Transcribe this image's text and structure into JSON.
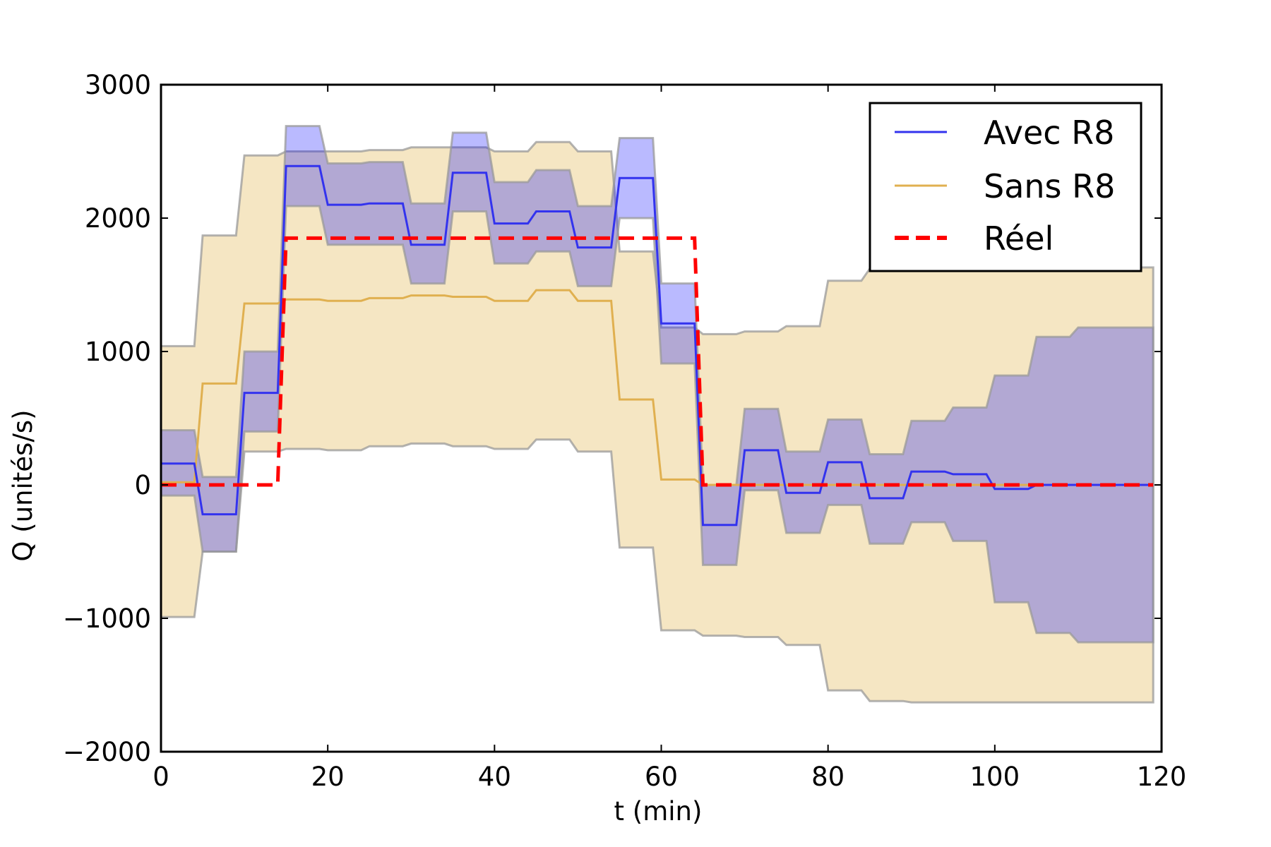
{
  "chart_data": {
    "type": "line",
    "xlabel": "t (min)",
    "ylabel": "Q (unités/s)",
    "xlim": [
      0,
      120
    ],
    "ylim": [
      -2000,
      3000
    ],
    "xticks": [
      0,
      20,
      40,
      60,
      80,
      100,
      120
    ],
    "xtick_labels": [
      "0",
      "20",
      "40",
      "60",
      "80",
      "100",
      "120"
    ],
    "yticks": [
      -2000,
      -1000,
      0,
      1000,
      2000,
      3000
    ],
    "ytick_labels": [
      "−2000",
      "−1000",
      "0",
      "1000",
      "2000",
      "3000"
    ],
    "grid": false,
    "legend_position": "top-right",
    "colors": {
      "avec_line": "#3333ee",
      "avec_band": "#0000ff",
      "sans_line": "#e0b050",
      "sans_band": "#e8c77a",
      "reel": "#ff0000",
      "band_edge": "#999999"
    },
    "series": [
      {
        "name": "Avec R8",
        "style": "solid",
        "x": [
          0,
          4,
          5,
          9,
          10,
          14,
          15,
          19,
          20,
          24,
          25,
          29,
          30,
          34,
          35,
          39,
          40,
          44,
          45,
          49,
          50,
          54,
          55,
          59,
          60,
          64,
          65,
          69,
          70,
          74,
          75,
          79,
          80,
          84,
          85,
          89,
          90,
          94,
          95,
          99,
          100,
          104,
          105,
          109,
          110,
          119
        ],
        "y": [
          160,
          160,
          -220,
          -220,
          690,
          690,
          2390,
          2390,
          2100,
          2100,
          2110,
          2110,
          1800,
          1800,
          2340,
          2340,
          1960,
          1960,
          2050,
          2050,
          1780,
          1780,
          2300,
          2300,
          1210,
          1210,
          -300,
          -300,
          260,
          260,
          -60,
          -60,
          170,
          170,
          -100,
          -100,
          100,
          100,
          80,
          80,
          -30,
          -30,
          0,
          0,
          0,
          0
        ],
        "lower": [
          -80,
          -80,
          -500,
          -500,
          400,
          400,
          2090,
          2090,
          1800,
          1800,
          1800,
          1800,
          1510,
          1510,
          2050,
          2050,
          1660,
          1660,
          1750,
          1750,
          1490,
          1490,
          2000,
          2000,
          910,
          910,
          -600,
          -600,
          -40,
          -40,
          -360,
          -360,
          -150,
          -150,
          -440,
          -440,
          -280,
          -280,
          -420,
          -420,
          -880,
          -880,
          -1110,
          -1110,
          -1180,
          -1180
        ],
        "upper": [
          410,
          410,
          60,
          60,
          1000,
          1000,
          2690,
          2690,
          2410,
          2410,
          2420,
          2420,
          2110,
          2110,
          2640,
          2640,
          2270,
          2270,
          2360,
          2360,
          2090,
          2090,
          2600,
          2600,
          1510,
          1510,
          0,
          0,
          570,
          570,
          250,
          250,
          490,
          490,
          230,
          230,
          480,
          480,
          580,
          580,
          820,
          820,
          1110,
          1110,
          1180,
          1180
        ]
      },
      {
        "name": "Sans R8",
        "style": "solid",
        "x": [
          0,
          4,
          5,
          9,
          10,
          14,
          15,
          19,
          20,
          24,
          25,
          29,
          30,
          34,
          35,
          39,
          40,
          44,
          45,
          49,
          50,
          54,
          55,
          59,
          60,
          64,
          65,
          69,
          70,
          74,
          75,
          79,
          80,
          84,
          85,
          89,
          90,
          94,
          95,
          99,
          100,
          104,
          105,
          109,
          110,
          119
        ],
        "y": [
          20,
          20,
          760,
          760,
          1360,
          1360,
          1390,
          1390,
          1380,
          1380,
          1400,
          1400,
          1420,
          1420,
          1410,
          1410,
          1380,
          1380,
          1460,
          1460,
          1380,
          1380,
          640,
          640,
          40,
          40,
          0,
          0,
          0,
          0,
          0,
          0,
          0,
          0,
          0,
          0,
          0,
          0,
          0,
          0,
          0,
          0,
          0,
          0,
          0,
          0
        ],
        "lower": [
          -990,
          -990,
          -500,
          -500,
          250,
          250,
          270,
          270,
          260,
          260,
          290,
          290,
          310,
          310,
          290,
          290,
          270,
          270,
          340,
          340,
          250,
          250,
          -470,
          -470,
          -1090,
          -1090,
          -1130,
          -1130,
          -1140,
          -1140,
          -1200,
          -1200,
          -1540,
          -1540,
          -1620,
          -1620,
          -1630,
          -1630,
          -1630,
          -1630,
          -1630,
          -1630,
          -1630,
          -1630,
          -1630,
          -1630
        ],
        "upper": [
          1040,
          1040,
          1870,
          1870,
          2470,
          2470,
          2500,
          2500,
          2500,
          2500,
          2510,
          2510,
          2530,
          2530,
          2530,
          2530,
          2500,
          2500,
          2570,
          2570,
          2500,
          2500,
          1750,
          1750,
          1180,
          1180,
          1130,
          1130,
          1150,
          1150,
          1190,
          1190,
          1530,
          1530,
          1620,
          1620,
          1630,
          1630,
          1630,
          1630,
          1630,
          1630,
          1630,
          1630,
          1630,
          1630
        ]
      },
      {
        "name": "Réel",
        "style": "dashed",
        "x": [
          0,
          14,
          15,
          64,
          65,
          119
        ],
        "y": [
          0,
          0,
          1850,
          1850,
          0,
          0
        ]
      }
    ]
  }
}
